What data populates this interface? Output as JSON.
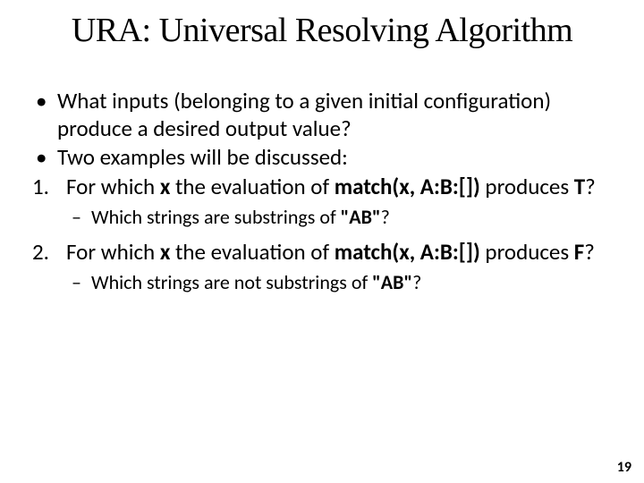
{
  "title": "URA: Universal Resolving Algorithm",
  "bullets": {
    "b1": "What inputs (belonging to a given initial configuration) produce a desired output value?",
    "b2": "Two examples will be discussed:"
  },
  "items": {
    "i1_pre": "For which ",
    "i1_x": "x",
    "i1_mid": " the evaluation of ",
    "i1_match": "match(x, A:B:[])",
    "i1_post1": " produces ",
    "i1_T": "T",
    "i1_post2": "?",
    "i1_sub_pre": "Which strings are substrings of ",
    "i1_sub_ab": "\"AB\"",
    "i1_sub_post": "?",
    "i2_pre": "For which ",
    "i2_x": "x",
    "i2_mid": " the evaluation of ",
    "i2_match": "match(x, A:B:[])",
    "i2_post1": " produces ",
    "i2_F": "F",
    "i2_post2": "?",
    "i2_sub_pre": "Which strings are not substrings of ",
    "i2_sub_ab": "\"AB\"",
    "i2_sub_post": "?"
  },
  "page_number": "19",
  "colors": {
    "background": "#ffffff",
    "text": "#000000"
  },
  "fonts": {
    "title_family": "Georgia, Times New Roman, serif",
    "title_size_pt": 29,
    "body_family": "Calibri, Segoe UI, Arial, sans-serif",
    "body_size_pt": 19,
    "sub_size_pt": 17
  }
}
